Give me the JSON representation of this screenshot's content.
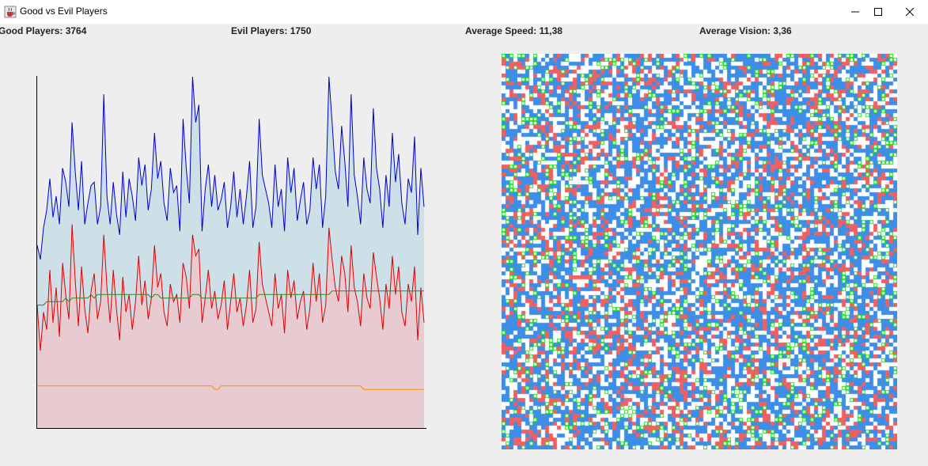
{
  "window": {
    "title": "Good vs Evil Players"
  },
  "stats": {
    "good": "Good Players: 3764",
    "evil": "Evil Players: 1750",
    "speed": "Average Speed: 11,38",
    "vision": "Average Vision: 3,36"
  },
  "colors": {
    "good_line": "#0000cc",
    "good_fill": "#cde0e8",
    "evil_line": "#dd0000",
    "evil_fill": "#e8cbd1",
    "speed_line": "#228b22",
    "vision_line": "#ff8c00",
    "grid_good": "#3d8ee8",
    "grid_evil": "#f06060",
    "grid_food": "#22dd22"
  },
  "icons": {
    "app": "java-cup-icon",
    "minimize": "minimize-icon",
    "maximize": "maximize-icon",
    "close": "close-icon"
  },
  "chart_data": {
    "type": "area",
    "title": "",
    "xlabel": "",
    "ylabel": "",
    "ylim": [
      0,
      1
    ],
    "x": [
      0,
      1,
      2,
      3,
      4,
      5,
      6,
      7,
      8,
      9,
      10,
      11,
      12,
      13,
      14,
      15,
      16,
      17,
      18,
      19,
      20,
      21,
      22,
      23,
      24,
      25,
      26,
      27,
      28,
      29,
      30,
      31,
      32,
      33,
      34,
      35,
      36,
      37,
      38,
      39,
      40,
      41,
      42,
      43,
      44,
      45,
      46,
      47,
      48,
      49,
      50,
      51,
      52,
      53,
      54,
      55,
      56,
      57,
      58,
      59,
      60,
      61,
      62,
      63,
      64,
      65,
      66,
      67,
      68,
      69,
      70,
      71,
      72,
      73,
      74,
      75,
      76,
      77,
      78,
      79,
      80,
      81,
      82,
      83,
      84,
      85,
      86,
      87,
      88,
      89,
      90,
      91,
      92,
      93,
      94,
      95,
      96,
      97,
      98,
      99,
      100,
      101,
      102,
      103,
      104,
      105,
      106,
      107,
      108,
      109,
      110,
      111,
      112,
      113,
      114,
      115,
      116,
      117,
      118,
      119,
      120,
      121,
      122
    ],
    "series": [
      {
        "key": "good",
        "values": [
          0.52,
          0.48,
          0.57,
          0.62,
          0.71,
          0.6,
          0.66,
          0.58,
          0.74,
          0.7,
          0.63,
          0.87,
          0.73,
          0.62,
          0.76,
          0.58,
          0.64,
          0.69,
          0.7,
          0.58,
          0.63,
          0.95,
          0.66,
          0.58,
          0.7,
          0.61,
          0.55,
          0.73,
          0.6,
          0.71,
          0.66,
          0.59,
          0.77,
          0.69,
          0.75,
          0.62,
          0.68,
          0.84,
          0.71,
          0.76,
          0.64,
          0.59,
          0.74,
          0.67,
          0.69,
          0.56,
          0.88,
          0.74,
          0.64,
          1.0,
          0.87,
          0.92,
          0.56,
          0.68,
          0.75,
          0.63,
          0.72,
          0.62,
          0.65,
          0.7,
          0.57,
          0.63,
          0.73,
          0.6,
          0.68,
          0.58,
          0.66,
          0.76,
          0.57,
          0.63,
          0.88,
          0.72,
          0.68,
          0.64,
          0.57,
          0.75,
          0.63,
          0.68,
          0.56,
          0.77,
          0.67,
          0.74,
          0.59,
          0.65,
          0.7,
          0.58,
          0.62,
          0.77,
          0.68,
          0.75,
          0.57,
          0.66,
          1.0,
          0.87,
          0.73,
          0.68,
          0.86,
          0.76,
          0.63,
          0.95,
          0.72,
          0.66,
          0.58,
          0.77,
          0.68,
          0.64,
          0.91,
          0.74,
          0.68,
          0.57,
          0.72,
          0.63,
          0.84,
          0.7,
          0.78,
          0.64,
          0.58,
          0.71,
          0.67,
          0.83,
          0.55,
          0.74,
          0.63
        ],
        "name": ""
      },
      {
        "key": "evil",
        "values": [
          0.35,
          0.22,
          0.33,
          0.28,
          0.45,
          0.3,
          0.4,
          0.26,
          0.47,
          0.38,
          0.31,
          0.58,
          0.42,
          0.29,
          0.46,
          0.34,
          0.27,
          0.39,
          0.44,
          0.31,
          0.36,
          0.55,
          0.4,
          0.3,
          0.45,
          0.34,
          0.25,
          0.43,
          0.33,
          0.38,
          0.28,
          0.36,
          0.49,
          0.35,
          0.42,
          0.31,
          0.37,
          0.52,
          0.4,
          0.44,
          0.33,
          0.29,
          0.41,
          0.36,
          0.38,
          0.3,
          0.47,
          0.43,
          0.34,
          0.55,
          0.49,
          0.51,
          0.3,
          0.37,
          0.45,
          0.34,
          0.39,
          0.31,
          0.35,
          0.42,
          0.28,
          0.36,
          0.44,
          0.33,
          0.37,
          0.29,
          0.35,
          0.45,
          0.3,
          0.34,
          0.53,
          0.41,
          0.37,
          0.33,
          0.29,
          0.44,
          0.34,
          0.38,
          0.27,
          0.45,
          0.37,
          0.42,
          0.31,
          0.36,
          0.39,
          0.28,
          0.34,
          0.47,
          0.36,
          0.44,
          0.3,
          0.35,
          0.57,
          0.48,
          0.4,
          0.36,
          0.49,
          0.44,
          0.33,
          0.52,
          0.4,
          0.36,
          0.29,
          0.44,
          0.37,
          0.34,
          0.5,
          0.43,
          0.37,
          0.28,
          0.41,
          0.34,
          0.49,
          0.38,
          0.46,
          0.33,
          0.29,
          0.41,
          0.36,
          0.46,
          0.25,
          0.4,
          0.3
        ],
        "name": ""
      },
      {
        "key": "speed",
        "values": [
          0.35,
          0.35,
          0.35,
          0.36,
          0.36,
          0.36,
          0.36,
          0.36,
          0.36,
          0.37,
          0.36,
          0.37,
          0.37,
          0.37,
          0.37,
          0.37,
          0.37,
          0.38,
          0.37,
          0.38,
          0.38,
          0.38,
          0.38,
          0.38,
          0.38,
          0.38,
          0.38,
          0.38,
          0.38,
          0.38,
          0.38,
          0.38,
          0.38,
          0.38,
          0.38,
          0.38,
          0.37,
          0.38,
          0.38,
          0.37,
          0.37,
          0.37,
          0.37,
          0.37,
          0.37,
          0.37,
          0.37,
          0.37,
          0.37,
          0.38,
          0.38,
          0.38,
          0.37,
          0.37,
          0.37,
          0.37,
          0.37,
          0.37,
          0.37,
          0.37,
          0.37,
          0.37,
          0.37,
          0.37,
          0.37,
          0.37,
          0.37,
          0.37,
          0.37,
          0.37,
          0.38,
          0.38,
          0.38,
          0.38,
          0.38,
          0.38,
          0.38,
          0.38,
          0.38,
          0.38,
          0.38,
          0.38,
          0.38,
          0.38,
          0.38,
          0.38,
          0.38,
          0.38,
          0.38,
          0.38,
          0.38,
          0.38,
          0.38,
          0.39,
          0.39,
          0.39,
          0.39,
          0.39,
          0.39,
          0.39,
          0.39,
          0.39,
          0.39,
          0.39,
          0.39,
          0.39,
          0.39,
          0.39,
          0.39,
          0.39,
          0.39,
          0.39,
          0.39,
          0.39,
          0.39,
          0.39,
          0.39,
          0.39,
          0.39,
          0.39,
          0.39,
          0.39,
          0.39
        ],
        "name": ""
      },
      {
        "key": "vision",
        "values": [
          0.12,
          0.12,
          0.12,
          0.12,
          0.12,
          0.12,
          0.12,
          0.12,
          0.12,
          0.12,
          0.12,
          0.12,
          0.12,
          0.12,
          0.12,
          0.12,
          0.12,
          0.12,
          0.12,
          0.12,
          0.12,
          0.12,
          0.12,
          0.12,
          0.12,
          0.12,
          0.12,
          0.12,
          0.12,
          0.12,
          0.12,
          0.12,
          0.12,
          0.12,
          0.12,
          0.12,
          0.12,
          0.12,
          0.12,
          0.12,
          0.12,
          0.12,
          0.12,
          0.12,
          0.12,
          0.12,
          0.12,
          0.12,
          0.12,
          0.12,
          0.12,
          0.12,
          0.12,
          0.12,
          0.12,
          0.12,
          0.11,
          0.11,
          0.12,
          0.12,
          0.12,
          0.12,
          0.12,
          0.12,
          0.12,
          0.12,
          0.12,
          0.12,
          0.12,
          0.12,
          0.12,
          0.12,
          0.12,
          0.12,
          0.12,
          0.12,
          0.12,
          0.12,
          0.12,
          0.12,
          0.12,
          0.12,
          0.12,
          0.12,
          0.12,
          0.12,
          0.12,
          0.12,
          0.12,
          0.12,
          0.12,
          0.12,
          0.12,
          0.12,
          0.12,
          0.12,
          0.12,
          0.12,
          0.12,
          0.12,
          0.12,
          0.12,
          0.12,
          0.11,
          0.11,
          0.11,
          0.11,
          0.11,
          0.11,
          0.11,
          0.11,
          0.11,
          0.11,
          0.11,
          0.11,
          0.11,
          0.11,
          0.11,
          0.11,
          0.11,
          0.11,
          0.11,
          0.11
        ],
        "name": ""
      }
    ]
  }
}
